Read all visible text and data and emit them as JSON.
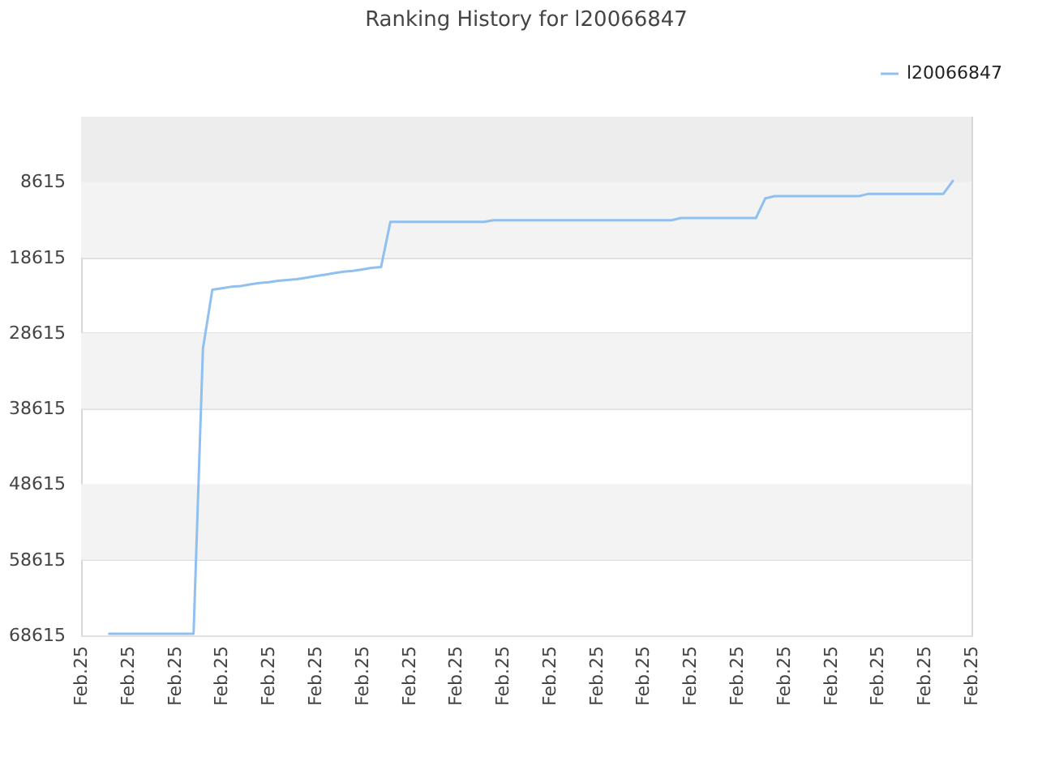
{
  "chart_data": {
    "type": "line",
    "title": "Ranking History for l20066847",
    "legend": "top right",
    "grid": "y",
    "categories": [
      "Feb.25",
      null,
      null,
      null,
      null,
      "Feb.25",
      null,
      null,
      null,
      null,
      "Feb.25",
      null,
      null,
      null,
      null,
      "Feb.25",
      null,
      null,
      null,
      null,
      "Feb.25",
      null,
      null,
      null,
      null,
      "Feb.25",
      null,
      null,
      null,
      null,
      "Feb.25",
      null,
      null,
      null,
      null,
      "Feb.25",
      null,
      null,
      null,
      null,
      "Feb.25",
      null,
      null,
      null,
      null,
      "Feb.25",
      null,
      null,
      null,
      null,
      "Feb.25",
      null,
      null,
      null,
      null,
      "Feb.25",
      null,
      null,
      null,
      null,
      "Feb.25",
      null,
      null,
      null,
      null,
      "Feb.25",
      null,
      null,
      null,
      null,
      "Feb.25",
      null,
      null,
      null,
      null,
      "Feb.25",
      null,
      null,
      null,
      null,
      "Feb.25",
      null,
      null,
      null,
      null,
      "Feb.25",
      null,
      null,
      null,
      null,
      "Feb.25",
      null,
      null,
      null,
      null,
      "Feb.25"
    ],
    "ylim": [
      68615,
      0
    ],
    "yticks": [
      8615,
      18615,
      28615,
      38615,
      48615,
      58615,
      68615
    ],
    "bands": [
      {
        "axis": "y",
        "from": 0,
        "to": 8615,
        "color": "#ededed"
      },
      {
        "axis": "y",
        "from": 8615,
        "to": 18615,
        "color": "#f3f3f3"
      },
      {
        "axis": "y",
        "from": 28615,
        "to": 38615,
        "color": "#f3f3f3"
      },
      {
        "axis": "y",
        "from": 48615,
        "to": 58615,
        "color": "#f3f3f3"
      }
    ],
    "series": [
      {
        "name": "l20066847",
        "color": "#90c0f0",
        "values": [
          null,
          null,
          null,
          68400,
          68400,
          68400,
          68400,
          68400,
          68400,
          68400,
          68400,
          68400,
          68400,
          30700,
          22900,
          22700,
          22500,
          22400,
          22200,
          22000,
          21900,
          21700,
          21600,
          21500,
          21300,
          21100,
          20900,
          20700,
          20500,
          20400,
          20200,
          20000,
          19900,
          13900,
          13900,
          13900,
          13900,
          13900,
          13900,
          13900,
          13900,
          13900,
          13900,
          13900,
          13700,
          13700,
          13700,
          13700,
          13700,
          13700,
          13700,
          13700,
          13700,
          13700,
          13700,
          13700,
          13700,
          13700,
          13700,
          13700,
          13700,
          13700,
          13700,
          13700,
          13400,
          13400,
          13400,
          13400,
          13400,
          13400,
          13400,
          13400,
          13400,
          10800,
          10500,
          10500,
          10500,
          10500,
          10500,
          10500,
          10500,
          10500,
          10500,
          10500,
          10200,
          10200,
          10200,
          10200,
          10200,
          10200,
          10200,
          10200,
          10200,
          8500,
          null,
          null
        ]
      }
    ]
  }
}
